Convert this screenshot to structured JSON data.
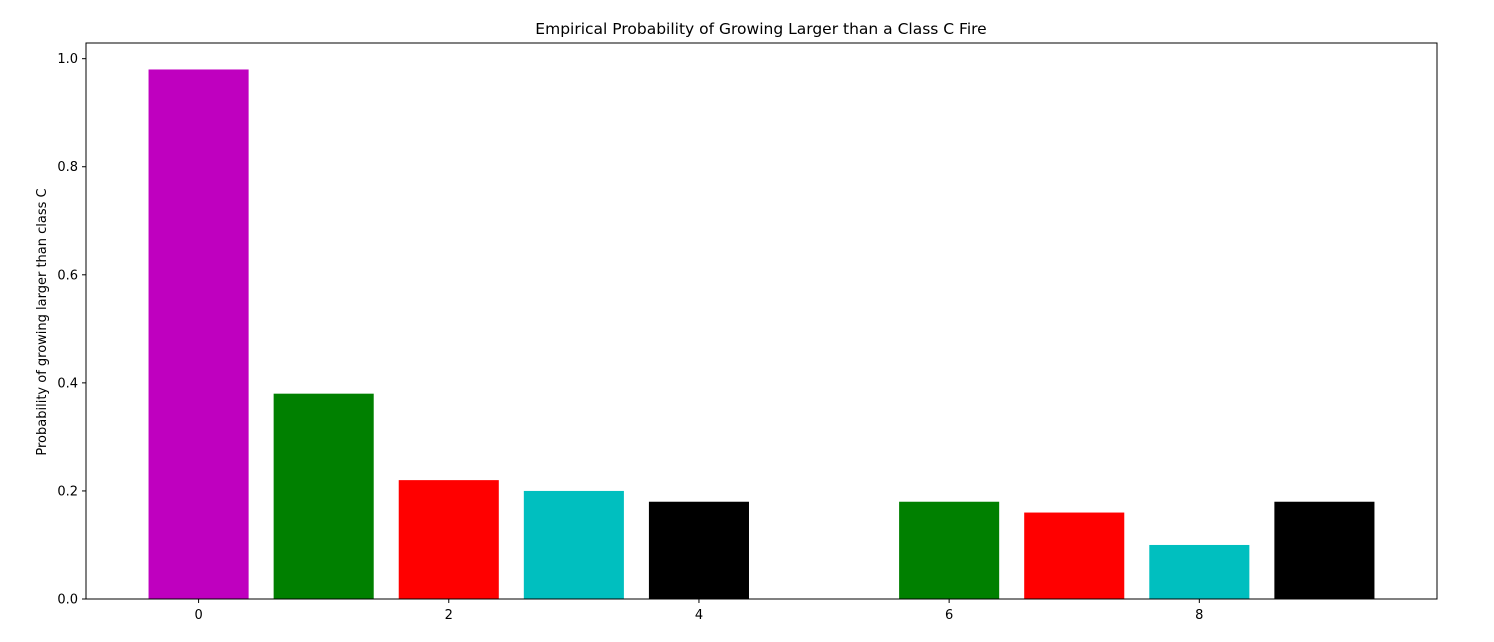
{
  "chart_data": {
    "type": "bar",
    "title": "Empirical Probability of Growing Larger than a Class C Fire",
    "xlabel": "",
    "ylabel": "Probability of growing larger than class C",
    "xlim": [
      -0.9,
      9.9
    ],
    "ylim": [
      0.0,
      1.029
    ],
    "xticks": [
      0,
      2,
      4,
      6,
      8
    ],
    "yticks": [
      0.0,
      0.2,
      0.4,
      0.6,
      0.8,
      1.0
    ],
    "bar_width": 0.8,
    "grid": false,
    "legend": "none",
    "bars": [
      {
        "x": 0,
        "value": 0.98,
        "color": "#bf00bf"
      },
      {
        "x": 1,
        "value": 0.38,
        "color": "#008000"
      },
      {
        "x": 2,
        "value": 0.22,
        "color": "#ff0000"
      },
      {
        "x": 3,
        "value": 0.2,
        "color": "#00bfbf"
      },
      {
        "x": 4,
        "value": 0.18,
        "color": "#000000"
      },
      {
        "x": 6,
        "value": 0.18,
        "color": "#008000"
      },
      {
        "x": 7,
        "value": 0.16,
        "color": "#ff0000"
      },
      {
        "x": 8,
        "value": 0.1,
        "color": "#00bfbf"
      },
      {
        "x": 9,
        "value": 0.18,
        "color": "#000000"
      }
    ]
  }
}
